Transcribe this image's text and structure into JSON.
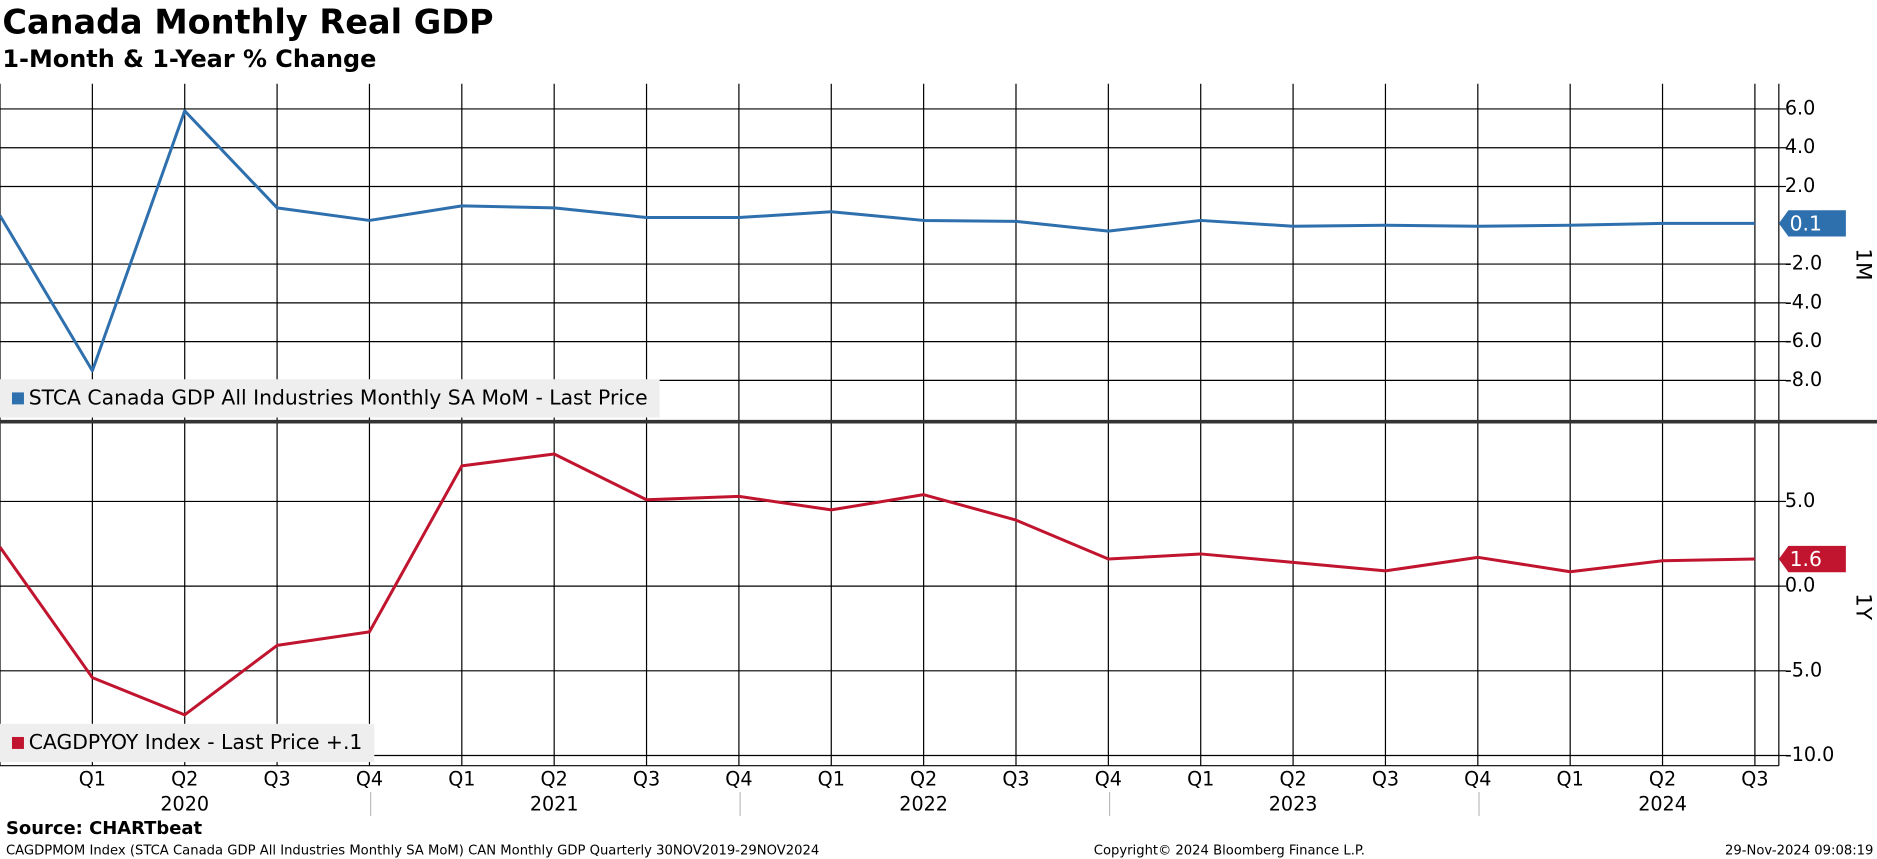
{
  "chart_data": [
    {
      "type": "line",
      "title": "Canada Monthly Real GDP",
      "subtitle": "1-Month & 1-Year % Change",
      "y_label": "1M",
      "series": [
        {
          "name": "STCA Canada GDP All Industries Monthly SA MoM - Last Price",
          "color": "#2e6fad",
          "values": [
            0.5,
            -7.5,
            5.9,
            0.9,
            0.25,
            1.0,
            0.9,
            0.4,
            0.4,
            0.7,
            0.25,
            0.2,
            -0.3,
            0.25,
            -0.05,
            0.0,
            -0.05,
            0.0,
            0.1,
            0.1
          ]
        }
      ],
      "ylim": [
        -10.1,
        7.3
      ],
      "yticks": [
        {
          "value": 6,
          "label": "6.0"
        },
        {
          "value": 4,
          "label": "4.0"
        },
        {
          "value": 2,
          "label": "2.0"
        },
        {
          "value": -2,
          "label": "-2.0"
        },
        {
          "value": -4,
          "label": "-4.0"
        },
        {
          "value": -6,
          "label": "-6.0"
        },
        {
          "value": -8,
          "label": "-8.0"
        }
      ],
      "grid": true
    },
    {
      "type": "line",
      "y_label": "1Y",
      "categories": [
        null,
        "Q1",
        "Q2",
        "Q3",
        "Q4",
        "Q1",
        "Q2",
        "Q3",
        "Q4",
        "Q1",
        "Q2",
        "Q3",
        "Q4",
        "Q1",
        "Q2",
        "Q3",
        "Q4",
        "Q1",
        "Q2",
        "Q3"
      ],
      "years": [
        "2020",
        "2021",
        "2022",
        "2023",
        "2024"
      ],
      "series": [
        {
          "name": "CAGDPYOY Index - Last Price +.1",
          "color": "#c0142f",
          "values": [
            2.3,
            -5.4,
            -7.6,
            -3.5,
            -2.7,
            7.1,
            7.8,
            5.1,
            5.3,
            4.5,
            5.4,
            3.9,
            1.6,
            1.9,
            1.4,
            0.9,
            1.7,
            0.85,
            1.5,
            1.6
          ]
        }
      ],
      "ylim": [
        -10.6,
        9.6
      ],
      "yticks": [
        {
          "value": 5,
          "label": "5.0"
        },
        {
          "value": 0,
          "label": "0.0"
        },
        {
          "value": -5,
          "label": "-5.0"
        },
        {
          "value": -10,
          "label": "-10.0"
        }
      ],
      "grid": true
    }
  ],
  "footer": {
    "source": "Source: CHARTbeat",
    "description": "CAGDPMOM Index (STCA Canada GDP All Industries Monthly SA MoM) CAN Monthly GDP  Quarterly 30NOV2019-29NOV2024",
    "copyright": "Copyright© 2024 Bloomberg Finance L.P.",
    "timestamp": "29-Nov-2024 09:08:19"
  }
}
